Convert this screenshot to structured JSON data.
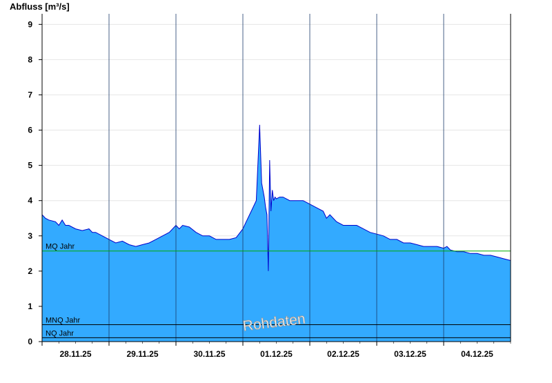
{
  "chart_data": {
    "type": "area",
    "ylabel": "Abfluss [m³/s]",
    "ylim": [
      0,
      9.3
    ],
    "yticks": [
      0,
      1,
      2,
      3,
      4,
      5,
      6,
      7,
      8,
      9
    ],
    "xlim": [
      0,
      7
    ],
    "x_tick_labels": [
      "28.11.25",
      "29.11.25",
      "30.11.25",
      "01.12.25",
      "02.12.25",
      "03.12.25",
      "04.12.25"
    ],
    "x_tick_positions": [
      0.5,
      1.5,
      2.5,
      3.5,
      4.5,
      5.5,
      6.5
    ],
    "day_boundaries": [
      1,
      2,
      3,
      4,
      5,
      6
    ],
    "grid": true,
    "colors": {
      "fill": "#33aaff",
      "line": "#0000cc",
      "mq_line": "#00aa00",
      "ref_lines": "#000000"
    },
    "reference_lines": [
      {
        "label": "MQ Jahr",
        "value": 2.57
      },
      {
        "label": "MNQ Jahr",
        "value": 0.48
      },
      {
        "label": "NQ Jahr",
        "value": 0.11
      }
    ],
    "watermark": "Rohdaten",
    "series": [
      {
        "x": [
          0,
          0.05,
          0.1,
          0.2,
          0.25,
          0.3,
          0.35,
          0.4,
          0.5,
          0.6,
          0.7,
          0.75,
          0.8,
          0.9,
          1.0,
          1.05,
          1.1,
          1.2,
          1.3,
          1.4,
          1.5,
          1.6,
          1.7,
          1.8,
          1.9,
          2.0,
          2.05,
          2.1,
          2.2,
          2.3,
          2.4,
          2.5,
          2.6,
          2.7,
          2.8,
          2.9,
          3.0,
          3.05,
          3.1,
          3.15,
          3.2,
          3.25,
          3.28,
          3.3,
          3.32,
          3.34,
          3.36,
          3.38,
          3.4,
          3.42,
          3.44,
          3.46,
          3.48,
          3.5,
          3.55,
          3.6,
          3.7,
          3.8,
          3.9,
          4.0,
          4.1,
          4.2,
          4.25,
          4.3,
          4.4,
          4.5,
          4.6,
          4.7,
          4.8,
          4.9,
          5.0,
          5.1,
          5.2,
          5.3,
          5.4,
          5.5,
          5.6,
          5.7,
          5.8,
          5.9,
          6.0,
          6.05,
          6.1,
          6.2,
          6.3,
          6.4,
          6.5,
          6.6,
          6.7,
          6.8,
          6.9,
          7.0
        ],
        "y": [
          3.6,
          3.5,
          3.45,
          3.4,
          3.3,
          3.45,
          3.3,
          3.3,
          3.2,
          3.15,
          3.2,
          3.1,
          3.1,
          3.0,
          2.9,
          2.85,
          2.8,
          2.85,
          2.75,
          2.7,
          2.75,
          2.8,
          2.9,
          3.0,
          3.1,
          3.3,
          3.2,
          3.3,
          3.25,
          3.1,
          3.0,
          3.0,
          2.9,
          2.9,
          2.9,
          2.95,
          3.2,
          3.4,
          3.6,
          3.8,
          4.0,
          6.15,
          4.5,
          4.3,
          4.1,
          3.8,
          3.6,
          2.0,
          5.15,
          3.7,
          4.3,
          4.0,
          4.1,
          4.05,
          4.1,
          4.1,
          4.0,
          4.0,
          4.0,
          3.9,
          3.8,
          3.7,
          3.5,
          3.6,
          3.4,
          3.3,
          3.3,
          3.3,
          3.2,
          3.1,
          3.05,
          3.0,
          2.9,
          2.9,
          2.8,
          2.8,
          2.75,
          2.7,
          2.7,
          2.7,
          2.65,
          2.7,
          2.6,
          2.55,
          2.55,
          2.5,
          2.5,
          2.45,
          2.45,
          2.4,
          2.35,
          2.3
        ]
      }
    ]
  }
}
